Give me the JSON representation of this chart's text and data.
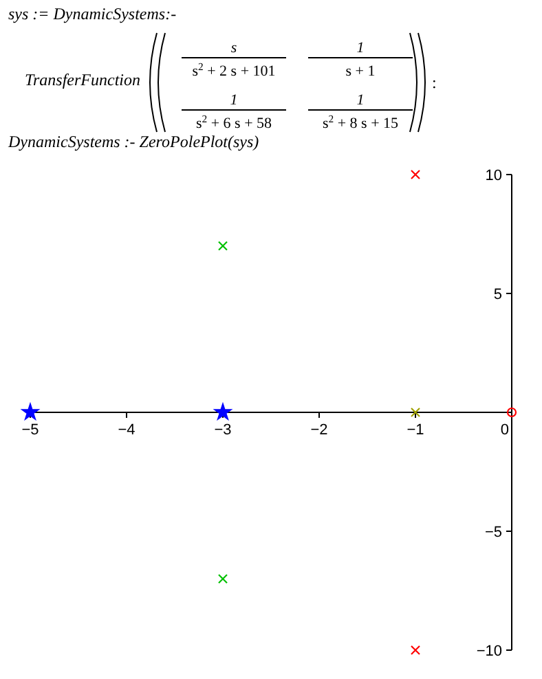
{
  "chart_data": {
    "type": "scatter",
    "title": "DynamicSystems :- ZeroPolePlot(sys)",
    "annotations": [
      "sys := DynamicSystems:-",
      "TransferFunction",
      "s",
      "s$^{2}$ + 2 s + 101",
      "1",
      "s + 1",
      "1",
      "s$^{2}$ + 6 s + 58",
      "1",
      "s$^{2}$ + 8 s + 15",
      ":"
    ],
    "xlim": [
      -5,
      0
    ],
    "ylim": [
      -10,
      10
    ],
    "xticks": [
      {
        "value": -5,
        "label": "−5"
      },
      {
        "value": -4,
        "label": "−4"
      },
      {
        "value": -3,
        "label": "−3"
      },
      {
        "value": -2,
        "label": "−2"
      },
      {
        "value": -1,
        "label": "−1"
      },
      0
    ],
    "yticks": [
      {
        "value": -10,
        "label": "−10"
      },
      {
        "value": -5,
        "label": "−5"
      },
      5,
      10
    ],
    "series": [
      {
        "color": "#ff0000",
        "marker": "cross",
        "x": [
          -1,
          -1
        ],
        "values": [
          10,
          -10
        ]
      },
      {
        "color": "#ff0000",
        "marker": "circle",
        "x": [
          0
        ],
        "values": [
          0
        ]
      },
      {
        "color": "#a0a000",
        "marker": "cross",
        "x": [
          -1
        ],
        "values": [
          0
        ]
      },
      {
        "color": "#00c000",
        "marker": "cross",
        "x": [
          -3,
          -3
        ],
        "values": [
          7,
          -7
        ]
      },
      {
        "color": "#0000ff",
        "marker": "star",
        "x": [
          -5,
          -3
        ],
        "values": [
          0,
          0
        ]
      }
    ]
  }
}
